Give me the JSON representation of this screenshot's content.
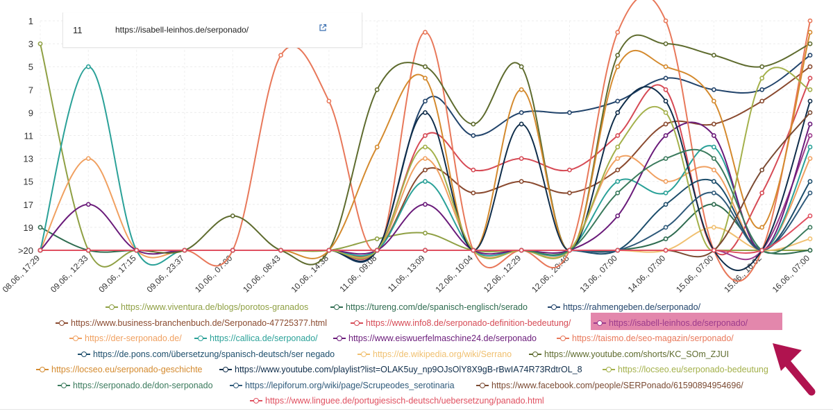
{
  "tooltip": {
    "rank": "11",
    "url": "https://isabell-leinhos.de/serponado/",
    "icon": "external-link-icon"
  },
  "chart_data": {
    "type": "line",
    "y_axis": {
      "ticks": [
        "1",
        "3",
        "5",
        "7",
        "9",
        "11",
        "13",
        "15",
        "17",
        "19",
        ">20"
      ],
      "reversed": true,
      "range": [
        1,
        21
      ]
    },
    "categories": [
      "08.06., 17:29",
      "09.06., 12:33",
      "09.06., 17:15",
      "09.06., 23:37",
      "10.06., 07:00",
      "10.06., 08:43",
      "10.06., 14:38",
      "11.06., 09:08",
      "11.06., 13:09",
      "12.06., 10:04",
      "12.06., 12:29",
      "12.06., 20:48",
      "13.06., 07:00",
      "14.06., 07:00",
      "15.06., 07:00",
      "15.06., 16:02",
      "16.06., 07:00"
    ],
    "series": [
      {
        "name": "https://www.viventura.de/blogs/porotos-granados",
        "color": "#8fa044",
        "values": [
          3,
          21,
          21,
          21,
          21,
          21,
          21,
          20,
          19.5,
          21,
          21,
          21,
          21,
          21,
          21,
          21,
          21
        ]
      },
      {
        "name": "https://tureng.com/de/spanisch-englisch/serado",
        "color": "#2e6b4f",
        "values": [
          19,
          21,
          21,
          21,
          21,
          21,
          21,
          21,
          21,
          21,
          21,
          21,
          21,
          20,
          17,
          21,
          21
        ]
      },
      {
        "name": "https://rahmengeben.de/serponado/",
        "color": "#22446b",
        "values": [
          21,
          21,
          21,
          21,
          21,
          21,
          21,
          21,
          8,
          11,
          9,
          9,
          8,
          6,
          7,
          7,
          4
        ]
      },
      {
        "name": "https://www.business-branchenbuch.de/Serponado-47725377.html",
        "color": "#8a4a2f",
        "values": [
          21,
          21,
          21,
          21,
          21,
          21,
          21,
          21,
          14,
          16,
          15,
          16,
          14,
          10,
          10,
          8,
          5
        ]
      },
      {
        "name": "https://www.info8.de/serponado-definition-bedeutung/",
        "color": "#d64a55",
        "values": [
          21,
          21,
          21,
          21,
          21,
          21,
          21,
          21,
          11,
          14,
          13,
          14,
          11,
          7,
          21,
          16,
          6
        ]
      },
      {
        "name": "https://isabell-leinhos.de/serponado/",
        "color": "#9c3a8c",
        "values": [
          21,
          21,
          21,
          21,
          21,
          21,
          21,
          21,
          21,
          21,
          21,
          21,
          21,
          21,
          21,
          21,
          11
        ]
      },
      {
        "name": "https://der-serponado.de/",
        "color": "#f0a060",
        "values": [
          21,
          13,
          21,
          21,
          21,
          21,
          21,
          21,
          13,
          21,
          21,
          21,
          13,
          15,
          14,
          21,
          13
        ]
      },
      {
        "name": "https://callica.de/serponado/",
        "color": "#2aa198",
        "values": [
          21,
          5,
          21,
          21,
          21,
          21,
          21,
          21,
          15,
          21,
          21,
          21,
          15,
          16,
          12,
          21,
          12
        ]
      },
      {
        "name": "https://www.eiswuerfelmaschine24.de/serponado",
        "color": "#6a1b7a",
        "values": [
          21,
          17,
          21,
          21,
          21,
          21,
          21,
          21,
          17,
          21,
          21,
          21,
          18,
          11,
          11,
          21,
          10
        ]
      },
      {
        "name": "https://taismo.de/seo-magazin/serponado/",
        "color": "#e8785a",
        "values": [
          21,
          21,
          21,
          21,
          21,
          4,
          8,
          21,
          2,
          21,
          21,
          21,
          2,
          1,
          21,
          21,
          1
        ]
      },
      {
        "name": "https://de.pons.com/übersetzung/spanisch-deutsch/ser negado",
        "color": "#1c4d6b",
        "values": [
          21,
          21,
          21,
          21,
          21,
          21,
          21,
          21,
          21,
          21,
          21,
          21,
          21,
          17,
          15,
          21,
          15
        ]
      },
      {
        "name": "https://de.wikipedia.org/wiki/Serrano",
        "color": "#f0c070",
        "values": [
          21,
          21,
          21,
          21,
          21,
          21,
          21,
          21,
          21,
          21,
          21,
          21,
          21,
          21,
          19,
          21,
          20
        ]
      },
      {
        "name": "https://www.youtube.com/shorts/KC_SOm_ZJUI",
        "color": "#5e6b2e",
        "values": [
          21,
          21,
          21,
          21,
          18,
          21,
          21,
          7,
          5,
          10,
          5,
          21,
          4,
          3,
          4,
          5,
          3
        ]
      },
      {
        "name": "https://locseo.eu/serponado-geschichte",
        "color": "#d48a2e",
        "values": [
          21,
          21,
          21,
          21,
          21,
          21,
          21,
          12,
          6,
          21,
          7,
          21,
          5,
          5,
          8,
          19,
          2
        ]
      },
      {
        "name": "https://www.youtube.com/playlist?list=OLAK5uy_np9OJsOlY8X9gB-rBwIA74R73RdtrOL_8",
        "color": "#0f2d4a",
        "values": [
          21,
          21,
          21,
          21,
          21,
          21,
          21,
          21,
          9,
          21,
          10,
          21,
          9,
          8,
          21,
          21,
          8
        ]
      },
      {
        "name": "https://locseo.eu/serponado-bedeutung",
        "color": "#a3b04a",
        "values": [
          21,
          21,
          21,
          21,
          21,
          21,
          21,
          21,
          12,
          21,
          21,
          21,
          12,
          9,
          21,
          6,
          7
        ]
      },
      {
        "name": "https://serponado.de/don-serponado",
        "color": "#3a7a5c",
        "values": [
          21,
          21,
          21,
          21,
          21,
          21,
          21,
          21,
          21,
          21,
          21,
          21,
          16,
          13,
          13,
          21,
          19
        ]
      },
      {
        "name": "https://lepiforum.org/wiki/page/Scrupeodes_serotinaria",
        "color": "#2f5a7a",
        "values": [
          21,
          21,
          21,
          21,
          21,
          21,
          21,
          21,
          21,
          21,
          21,
          21,
          21,
          19,
          16,
          21,
          16
        ]
      },
      {
        "name": "https://www.facebook.com/people/SERPonado/61590894954696/",
        "color": "#7a4a32",
        "values": [
          21,
          21,
          21,
          21,
          21,
          21,
          21,
          21,
          21,
          21,
          21,
          21,
          21,
          21,
          21,
          14,
          9
        ]
      },
      {
        "name": "https://www.linguee.de/portugiesisch-deutsch/uebersetzung/panado.html",
        "color": "#e05060",
        "values": [
          21,
          21,
          21,
          21,
          21,
          21,
          21,
          21,
          21,
          21,
          21,
          21,
          21,
          21,
          21,
          21,
          18
        ]
      }
    ]
  },
  "legend_rows": [
    [
      {
        "s": 0,
        "x": 152
      },
      {
        "s": 1,
        "x": 476
      },
      {
        "s": 2,
        "x": 789
      }
    ],
    [
      {
        "s": 3,
        "x": 80
      },
      {
        "s": 4,
        "x": 505
      },
      {
        "s": 5,
        "x": 855
      }
    ],
    [
      {
        "s": 6,
        "x": 100
      },
      {
        "s": 7,
        "x": 280
      },
      {
        "s": 8,
        "x": 480
      },
      {
        "s": 9,
        "x": 802
      }
    ],
    [
      {
        "s": 10,
        "x": 112
      },
      {
        "s": 11,
        "x": 515
      },
      {
        "s": 12,
        "x": 762
      }
    ],
    [
      {
        "s": 13,
        "x": 52
      },
      {
        "s": 14,
        "x": 316
      },
      {
        "s": 15,
        "x": 868
      }
    ],
    [
      {
        "s": 16,
        "x": 83
      },
      {
        "s": 17,
        "x": 331
      },
      {
        "s": 18,
        "x": 686
      }
    ],
    [
      {
        "s": 19,
        "x": 360
      }
    ]
  ],
  "legend_highlight_series": 5
}
